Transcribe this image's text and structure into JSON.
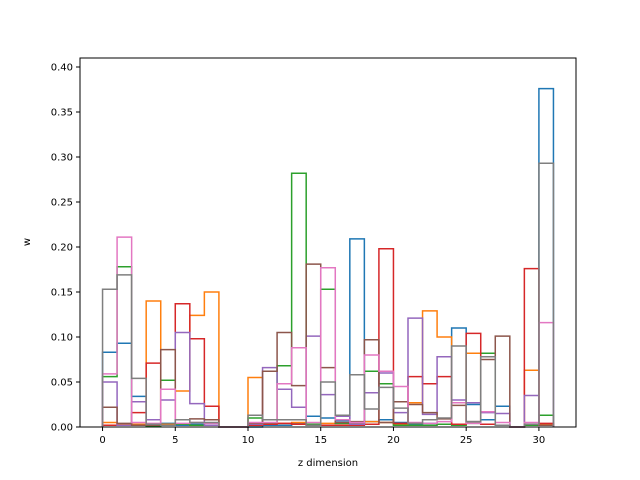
{
  "chart_data": {
    "type": "histogram-step",
    "xlabel": "z dimension",
    "ylabel": "w",
    "xlim": [
      -1.55,
      32.55
    ],
    "ylim": [
      0,
      0.41
    ],
    "xticks": [
      0,
      5,
      10,
      15,
      20,
      25,
      30
    ],
    "yticks": [
      0.0,
      0.05,
      0.1,
      0.15,
      0.2,
      0.25,
      0.3,
      0.35,
      0.4
    ],
    "xtick_labels": [
      "0",
      "5",
      "10",
      "15",
      "20",
      "25",
      "30"
    ],
    "ytick_labels": [
      "0.00",
      "0.05",
      "0.10",
      "0.15",
      "0.20",
      "0.25",
      "0.30",
      "0.35",
      "0.40"
    ],
    "bins": [
      0,
      1,
      2,
      3,
      4,
      5,
      6,
      7,
      8,
      9,
      10,
      11,
      12,
      13,
      14,
      15,
      16,
      17,
      18,
      19,
      20,
      21,
      22,
      23,
      24,
      25,
      26,
      27,
      28,
      29,
      30,
      31
    ],
    "grid": false,
    "series": [
      {
        "color": "#1f77b4",
        "values": [
          0.083,
          0.093,
          0.034,
          0.002,
          0.004,
          0.002,
          0.003,
          0.002,
          0.0,
          0.0,
          0.0,
          0.002,
          0.002,
          0.004,
          0.012,
          0.01,
          0.007,
          0.209,
          0.006,
          0.008,
          0.005,
          0.003,
          0.004,
          0.003,
          0.11,
          0.025,
          0.008,
          0.023,
          0.0,
          0.002,
          0.376
        ]
      },
      {
        "color": "#ff7f0e",
        "values": [
          0.005,
          0.003,
          0.003,
          0.14,
          0.003,
          0.04,
          0.124,
          0.15,
          0.0,
          0.0,
          0.055,
          0.004,
          0.004,
          0.005,
          0.002,
          0.004,
          0.004,
          0.004,
          0.006,
          0.005,
          0.003,
          0.027,
          0.129,
          0.1,
          0.003,
          0.082,
          0.003,
          0.002,
          0.0,
          0.063,
          0.003
        ]
      },
      {
        "color": "#2ca02c",
        "values": [
          0.056,
          0.178,
          0.002,
          0.001,
          0.052,
          0.003,
          0.002,
          0.002,
          0.0,
          0.0,
          0.01,
          0.004,
          0.068,
          0.282,
          0.003,
          0.153,
          0.004,
          0.005,
          0.062,
          0.048,
          0.002,
          0.002,
          0.002,
          0.003,
          0.002,
          0.004,
          0.082,
          0.002,
          0.0,
          0.002,
          0.013
        ]
      },
      {
        "color": "#d62728",
        "values": [
          0.002,
          0.002,
          0.016,
          0.071,
          0.002,
          0.137,
          0.098,
          0.023,
          0.0,
          0.0,
          0.002,
          0.003,
          0.004,
          0.003,
          0.002,
          0.002,
          0.002,
          0.002,
          0.003,
          0.198,
          0.004,
          0.056,
          0.048,
          0.056,
          0.003,
          0.104,
          0.003,
          0.002,
          0.0,
          0.176,
          0.004
        ]
      },
      {
        "color": "#9467bd",
        "values": [
          0.05,
          0.002,
          0.028,
          0.008,
          0.03,
          0.105,
          0.026,
          0.002,
          0.0,
          0.0,
          0.003,
          0.066,
          0.042,
          0.022,
          0.101,
          0.036,
          0.012,
          0.003,
          0.038,
          0.06,
          0.016,
          0.121,
          0.014,
          0.078,
          0.03,
          0.027,
          0.016,
          0.015,
          0.0,
          0.035,
          0.002
        ]
      },
      {
        "color": "#8c564b",
        "values": [
          0.022,
          0.004,
          0.002,
          0.002,
          0.086,
          0.008,
          0.009,
          0.008,
          0.0,
          0.0,
          0.004,
          0.062,
          0.105,
          0.046,
          0.181,
          0.066,
          0.005,
          0.006,
          0.097,
          0.005,
          0.028,
          0.025,
          0.016,
          0.009,
          0.024,
          0.006,
          0.075,
          0.101,
          0.0,
          0.003,
          0.002
        ]
      },
      {
        "color": "#e377c2",
        "values": [
          0.059,
          0.211,
          0.005,
          0.004,
          0.042,
          0.004,
          0.005,
          0.004,
          0.0,
          0.0,
          0.005,
          0.005,
          0.048,
          0.088,
          0.005,
          0.177,
          0.008,
          0.005,
          0.08,
          0.062,
          0.045,
          0.005,
          0.004,
          0.006,
          0.027,
          0.004,
          0.017,
          0.005,
          0.0,
          0.005,
          0.116
        ]
      },
      {
        "color": "#7f7f7f",
        "values": [
          0.153,
          0.169,
          0.054,
          0.003,
          0.002,
          0.008,
          0.005,
          0.005,
          0.0,
          0.0,
          0.013,
          0.008,
          0.008,
          0.008,
          0.002,
          0.05,
          0.013,
          0.058,
          0.02,
          0.044,
          0.021,
          0.004,
          0.008,
          0.01,
          0.09,
          0.006,
          0.078,
          0.002,
          0.0,
          0.003,
          0.293
        ]
      }
    ]
  }
}
